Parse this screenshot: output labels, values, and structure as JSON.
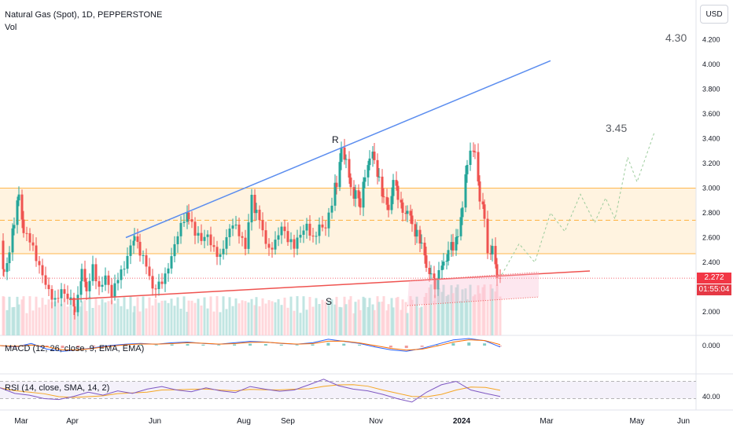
{
  "header": {
    "title": "Natural Gas (Spot), 1D, PEPPERSTONE",
    "vol_label": "Vol",
    "currency": "USD",
    "macd_label": "MACD (12, 26, close, 9, EMA, EMA)",
    "rsi_label": "RSI (14, close, SMA, 14, 2)"
  },
  "price_tag": {
    "price": "2.272",
    "countdown": "01:55:04"
  },
  "annotations": {
    "target_high": "4.30",
    "target_mid": "3.45",
    "resistance": "R",
    "support": "S"
  },
  "colors": {
    "up": "#26a69a",
    "down": "#ef5350",
    "zone": "#fff3e0",
    "zone_line": "#ffb74d",
    "resistance_line": "#5b8def",
    "support_line": "#ef5350",
    "macd_line": "#2962ff",
    "signal_line": "#ff6d00",
    "rsi_line": "#7e57c2",
    "rsi_ma": "#f5a623"
  },
  "chart_data": {
    "type": "candlestick",
    "instrument": "Natural Gas (Spot)",
    "timeframe": "1D",
    "x_ticks": [
      "Mar",
      "Apr",
      "Jun",
      "Aug",
      "Sep",
      "Nov",
      "2024",
      "Mar",
      "May",
      "Jun"
    ],
    "y_ticks": [
      "2.000",
      "2.200",
      "2.400",
      "2.600",
      "2.800",
      "3.000",
      "3.200",
      "3.400",
      "3.600",
      "3.800",
      "4.000",
      "4.200"
    ],
    "ylim": [
      1.83,
      4.3
    ],
    "macd_tick": "0.000",
    "rsi_tick": "40.00",
    "last_price": 2.272,
    "zone": [
      2.47,
      3.0
    ],
    "zone_mid": 2.74,
    "close_path": [
      {
        "t": 0,
        "c": 2.55
      },
      {
        "t": 5,
        "c": 2.3
      },
      {
        "t": 12,
        "c": 2.45
      },
      {
        "t": 18,
        "c": 2.75
      },
      {
        "t": 24,
        "c": 2.97
      },
      {
        "t": 30,
        "c": 2.62
      },
      {
        "t": 38,
        "c": 2.55
      },
      {
        "t": 46,
        "c": 2.42
      },
      {
        "t": 54,
        "c": 2.32
      },
      {
        "t": 62,
        "c": 2.2
      },
      {
        "t": 70,
        "c": 2.1
      },
      {
        "t": 78,
        "c": 2.15
      },
      {
        "t": 86,
        "c": 2.08
      },
      {
        "t": 95,
        "c": 2.05
      },
      {
        "t": 104,
        "c": 2.3
      },
      {
        "t": 110,
        "c": 2.2
      },
      {
        "t": 118,
        "c": 2.38
      },
      {
        "t": 126,
        "c": 2.16
      },
      {
        "t": 134,
        "c": 2.25
      },
      {
        "t": 142,
        "c": 2.12
      },
      {
        "t": 150,
        "c": 2.3
      },
      {
        "t": 158,
        "c": 2.4
      },
      {
        "t": 166,
        "c": 2.55
      },
      {
        "t": 171,
        "c": 2.6
      },
      {
        "t": 178,
        "c": 2.45
      },
      {
        "t": 186,
        "c": 2.35
      },
      {
        "t": 194,
        "c": 2.18
      },
      {
        "t": 202,
        "c": 2.25
      },
      {
        "t": 210,
        "c": 2.32
      },
      {
        "t": 218,
        "c": 2.45
      },
      {
        "t": 226,
        "c": 2.6
      },
      {
        "t": 234,
        "c": 2.72
      },
      {
        "t": 240,
        "c": 2.78
      },
      {
        "t": 248,
        "c": 2.62
      },
      {
        "t": 256,
        "c": 2.55
      },
      {
        "t": 264,
        "c": 2.6
      },
      {
        "t": 272,
        "c": 2.52
      },
      {
        "t": 280,
        "c": 2.48
      },
      {
        "t": 288,
        "c": 2.62
      },
      {
        "t": 296,
        "c": 2.7
      },
      {
        "t": 304,
        "c": 2.6
      },
      {
        "t": 312,
        "c": 2.5
      },
      {
        "t": 320,
        "c": 2.95
      },
      {
        "t": 326,
        "c": 2.8
      },
      {
        "t": 334,
        "c": 2.62
      },
      {
        "t": 342,
        "c": 2.5
      },
      {
        "t": 350,
        "c": 2.6
      },
      {
        "t": 358,
        "c": 2.72
      },
      {
        "t": 366,
        "c": 2.58
      },
      {
        "t": 374,
        "c": 2.5
      },
      {
        "t": 382,
        "c": 2.6
      },
      {
        "t": 390,
        "c": 2.7
      },
      {
        "t": 398,
        "c": 2.62
      },
      {
        "t": 406,
        "c": 2.72
      },
      {
        "t": 414,
        "c": 2.68
      },
      {
        "t": 422,
        "c": 2.85
      },
      {
        "t": 428,
        "c": 3.05
      },
      {
        "t": 434,
        "c": 3.3
      },
      {
        "t": 440,
        "c": 3.2
      },
      {
        "t": 446,
        "c": 3.02
      },
      {
        "t": 452,
        "c": 2.95
      },
      {
        "t": 458,
        "c": 2.88
      },
      {
        "t": 464,
        "c": 3.12
      },
      {
        "t": 470,
        "c": 3.22
      },
      {
        "t": 476,
        "c": 3.25
      },
      {
        "t": 482,
        "c": 3.05
      },
      {
        "t": 488,
        "c": 2.9
      },
      {
        "t": 494,
        "c": 2.85
      },
      {
        "t": 500,
        "c": 3.05
      },
      {
        "t": 506,
        "c": 2.95
      },
      {
        "t": 512,
        "c": 2.82
      },
      {
        "t": 518,
        "c": 2.78
      },
      {
        "t": 524,
        "c": 2.72
      },
      {
        "t": 530,
        "c": 2.62
      },
      {
        "t": 536,
        "c": 2.55
      },
      {
        "t": 542,
        "c": 2.4
      },
      {
        "t": 548,
        "c": 2.3
      },
      {
        "t": 553,
        "c": 2.2
      },
      {
        "t": 558,
        "c": 2.32
      },
      {
        "t": 564,
        "c": 2.42
      },
      {
        "t": 570,
        "c": 2.48
      },
      {
        "t": 576,
        "c": 2.55
      },
      {
        "t": 582,
        "c": 2.62
      },
      {
        "t": 588,
        "c": 2.82
      },
      {
        "t": 594,
        "c": 3.2
      },
      {
        "t": 598,
        "c": 3.35
      },
      {
        "t": 604,
        "c": 3.3
      },
      {
        "t": 610,
        "c": 2.9
      },
      {
        "t": 616,
        "c": 2.78
      },
      {
        "t": 620,
        "c": 2.5
      },
      {
        "t": 626,
        "c": 2.52
      },
      {
        "t": 632,
        "c": 2.3
      },
      {
        "t": 636,
        "c": 2.27
      }
    ],
    "resistance_line": [
      {
        "t": 160,
        "c": 2.6
      },
      {
        "t": 700,
        "c": 4.03
      }
    ],
    "support_line": [
      {
        "t": 88,
        "c": 2.1
      },
      {
        "t": 750,
        "c": 2.33
      }
    ],
    "support_channel": [
      {
        "t": 520,
        "c": 2.25
      },
      {
        "t": 685,
        "c": 2.32
      },
      {
        "t": 518,
        "c": 2.05
      },
      {
        "t": 685,
        "c": 2.12
      }
    ],
    "projection_path": [
      {
        "t": 638,
        "c": 2.3
      },
      {
        "t": 660,
        "c": 2.55
      },
      {
        "t": 680,
        "c": 2.4
      },
      {
        "t": 700,
        "c": 2.8
      },
      {
        "t": 718,
        "c": 2.65
      },
      {
        "t": 738,
        "c": 2.95
      },
      {
        "t": 756,
        "c": 2.72
      },
      {
        "t": 770,
        "c": 2.92
      },
      {
        "t": 782,
        "c": 2.75
      },
      {
        "t": 798,
        "c": 3.25
      },
      {
        "t": 810,
        "c": 3.05
      },
      {
        "t": 832,
        "c": 3.45
      }
    ],
    "macd_path": [
      0,
      -0.2,
      0.3,
      -0.5,
      -0.8,
      -0.6,
      -0.3,
      0.0,
      0.2,
      0.3,
      0.2,
      0.4,
      0.5,
      0.3,
      0.2,
      0.4,
      0.6,
      0.5,
      0.3,
      0.2,
      0.4,
      0.9,
      0.6,
      0.3,
      -0.2,
      -0.6,
      -0.8,
      -0.4,
      0.2,
      0.8,
      1.0,
      0.7,
      -0.2
    ],
    "rsi_path": [
      55,
      42,
      38,
      30,
      28,
      35,
      45,
      38,
      48,
      42,
      52,
      58,
      50,
      46,
      55,
      48,
      44,
      58,
      52,
      47,
      50,
      62,
      75,
      60,
      52,
      48,
      40,
      30,
      22,
      45,
      62,
      70,
      50,
      42,
      35
    ]
  }
}
